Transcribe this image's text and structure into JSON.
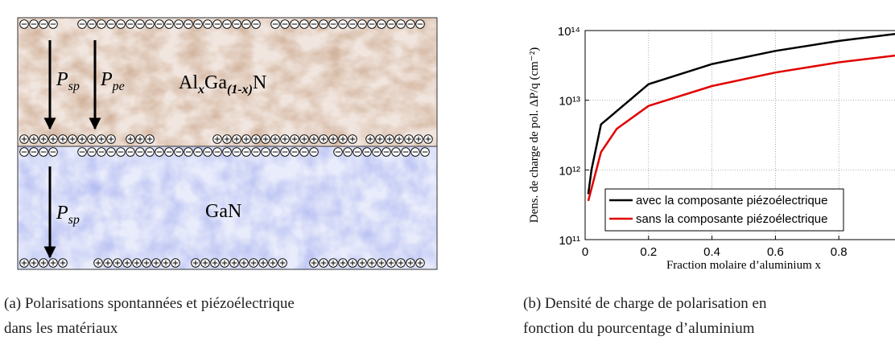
{
  "figure_a": {
    "algan": {
      "al": "Al",
      "x": "x",
      "ga": "Ga",
      "sub": "(1-x)",
      "n": "N"
    },
    "gan": "GaN",
    "arrows": [
      {
        "p": "P",
        "sub": "sp"
      },
      {
        "p": "P",
        "sub": "pe"
      },
      {
        "p": "P",
        "sub": "sp"
      }
    ],
    "caption_lines": [
      "(a) Polarisations spontannées et piézoélectrique",
      "dans les matériaux"
    ]
  },
  "figure_b": {
    "caption_lines": [
      "(b) Densité de charge de polarisation en",
      "fonction du pourcentage d’aluminium"
    ]
  },
  "chart_data": {
    "type": "line",
    "xlabel": "Fraction molaire d’aluminium x",
    "ylabel": "Dens. de charge de pol. ΔP/q (cm⁻²)",
    "x": [
      0.01,
      0.02,
      0.05,
      0.1,
      0.2,
      0.4,
      0.6,
      0.8,
      1
    ],
    "series": [
      {
        "name": "avec la composante piézoélectrique",
        "color": "#000000",
        "values": [
          450000000000.0,
          1000000000000.0,
          4500000000000.0,
          7000000000000.0,
          17000000000000.0,
          33000000000000.0,
          51000000000000.0,
          71000000000000.0,
          92000000000000.0
        ]
      },
      {
        "name": "sans la composante piézoélectrique",
        "color": "#e00000",
        "values": [
          360000000000.0,
          540000000000.0,
          1800000000000.0,
          3900000000000.0,
          8300000000000.0,
          16000000000000.0,
          25000000000000.0,
          35000000000000.0,
          45000000000000.0
        ]
      }
    ],
    "xlim": [
      0,
      1
    ],
    "xticks": [
      0,
      0.2,
      0.4,
      0.6,
      0.8,
      1
    ],
    "ylim": [
      100000000000.0,
      100000000000000.0
    ],
    "yticks": [
      {
        "value": 100000000000.0,
        "label": "10¹¹"
      },
      {
        "value": 1000000000000.0,
        "label": "10¹²"
      },
      {
        "value": 10000000000000.0,
        "label": "10¹³"
      },
      {
        "value": 100000000000000.0,
        "label": "10¹⁴"
      }
    ],
    "log_y": true,
    "grid": true,
    "legend": "lower right"
  }
}
